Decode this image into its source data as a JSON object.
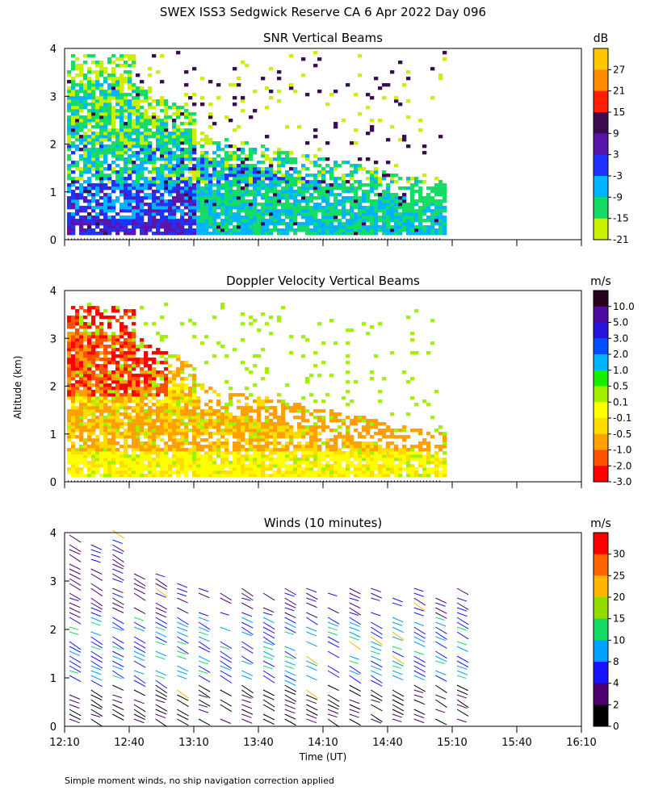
{
  "figure": {
    "title": "SWEX ISS3 Sedgwick Reserve CA    6 Apr 2022 Day 096",
    "y_label": "Altitude (km)",
    "x_label": "Time (UT)",
    "footnote": "Simple moment winds, no ship navigation correction applied"
  },
  "chart_data": [
    {
      "id": "snr",
      "type": "heatmap",
      "title": "SNR Vertical Beams",
      "ylabel": "Altitude (km)",
      "ylim": [
        0,
        4
      ],
      "y_ticks": [
        "0",
        "1",
        "2",
        "3",
        "4"
      ],
      "xlim": [
        "12:10",
        "16:10"
      ],
      "data_extent": {
        "time_start": "12:10",
        "time_end": "15:07",
        "alt_min_km": 0.1,
        "alt_max_km": 4.0
      },
      "colorbar": {
        "unit": "dB",
        "labels": [
          "27",
          "21",
          "15",
          "9",
          "3",
          "-3",
          "-9",
          "-15",
          "-21"
        ],
        "colors": [
          "#ffc800",
          "#ff8c00",
          "#ff1e00",
          "#3c0a50",
          "#5a14aa",
          "#1e32ff",
          "#00b4ff",
          "#14dc64",
          "#c8f000"
        ]
      }
    },
    {
      "id": "doppler",
      "type": "heatmap",
      "title": "Doppler Velocity Vertical Beams",
      "ylabel": "Altitude (km)",
      "ylim": [
        0,
        4
      ],
      "y_ticks": [
        "0",
        "1",
        "2",
        "3",
        "4"
      ],
      "xlim": [
        "12:10",
        "16:10"
      ],
      "data_extent": {
        "time_start": "12:10",
        "time_end": "15:07",
        "alt_min_km": 0.1,
        "alt_max_km": 3.8
      },
      "colorbar": {
        "unit": "m/s",
        "labels": [
          "10.0",
          "5.0",
          "3.0",
          "2.0",
          "1.0",
          "0.5",
          "0.1",
          "-0.1",
          "-0.5",
          "-1.0",
          "-2.0",
          "-3.0"
        ],
        "colors": [
          "#28001e",
          "#500aa0",
          "#2814dc",
          "#0050ff",
          "#00b4ff",
          "#14f000",
          "#a0f000",
          "#ffff00",
          "#ffdc00",
          "#ffa000",
          "#ff5000",
          "#ff0000"
        ]
      }
    },
    {
      "id": "winds",
      "type": "scatter",
      "title": "Winds (10 minutes)",
      "ylabel": "Altitude (km)",
      "xlabel": "Time (UT)",
      "ylim": [
        0,
        4
      ],
      "y_ticks": [
        "0",
        "1",
        "2",
        "3",
        "4"
      ],
      "x_ticks": [
        "12:10",
        "12:40",
        "13:10",
        "13:40",
        "14:10",
        "14:40",
        "15:10",
        "15:40",
        "16:10"
      ],
      "x_tick_minutes": [
        0,
        30,
        60,
        90,
        120,
        150,
        180,
        210,
        240
      ],
      "profile_minutes": [
        0,
        10,
        20,
        30,
        40,
        50,
        60,
        70,
        80,
        90,
        100,
        110,
        120,
        130,
        140,
        150,
        160,
        170,
        180
      ],
      "colorbar": {
        "unit": "m/s",
        "labels": [
          "30",
          "25",
          "20",
          "15",
          "10",
          "8",
          "4",
          "2",
          "0"
        ],
        "colors": [
          "#ff0000",
          "#ff6400",
          "#ffb400",
          "#90dc00",
          "#14dc64",
          "#00a0ff",
          "#1414ff",
          "#50006e",
          "#000000"
        ]
      }
    }
  ]
}
